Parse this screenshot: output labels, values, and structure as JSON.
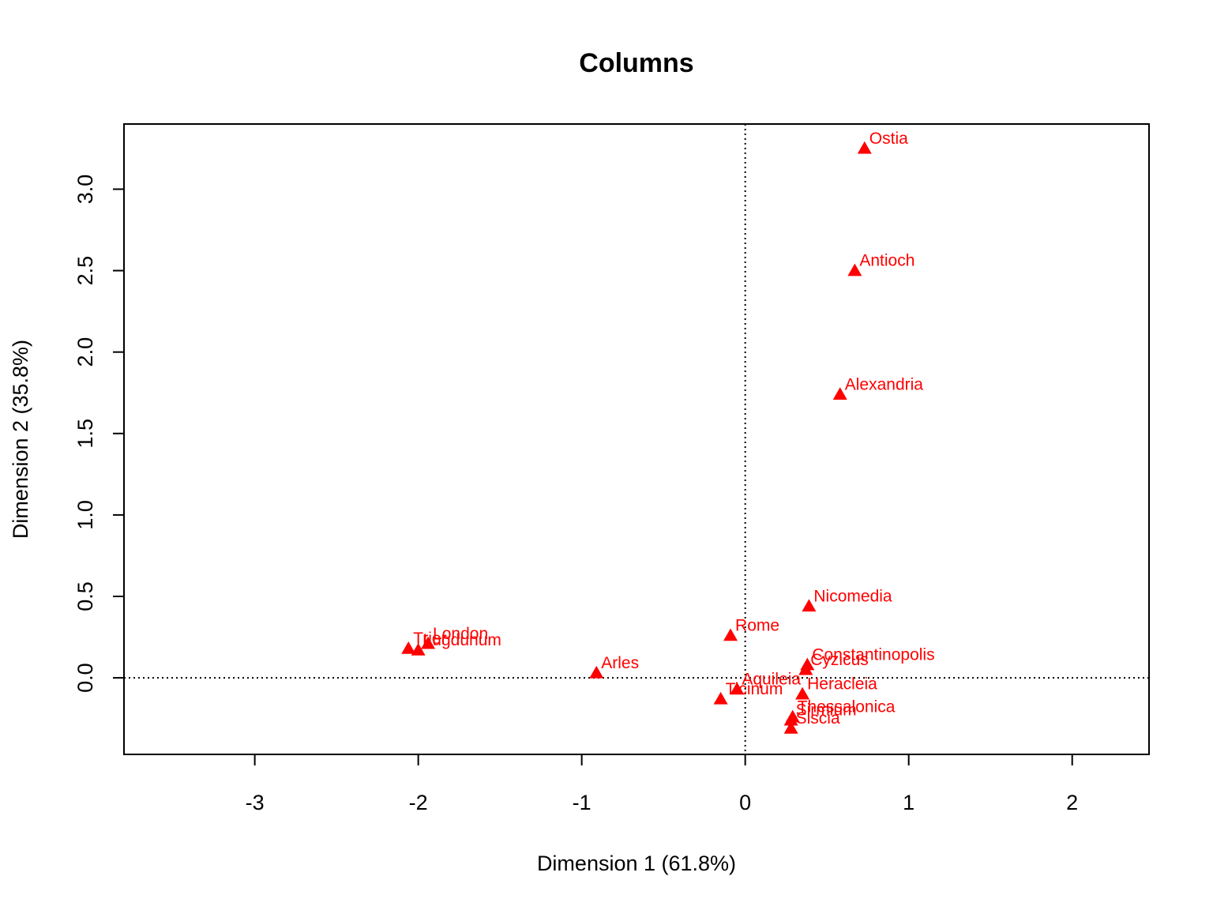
{
  "chart_data": {
    "type": "scatter",
    "title": "Columns",
    "xlabel": "Dimension 1 (61.8%)",
    "ylabel": "Dimension 2 (35.8%)",
    "xlim": [
      -3.8,
      2.47
    ],
    "ylim": [
      -0.47,
      3.4
    ],
    "x_ticks": [
      -3,
      -2,
      -1,
      0,
      1,
      2
    ],
    "y_ticks": [
      0.0,
      0.5,
      1.0,
      1.5,
      2.0,
      2.5,
      3.0
    ],
    "x_tick_labels": [
      "-3",
      "-2",
      "-1",
      "0",
      "1",
      "2"
    ],
    "y_tick_labels": [
      "0.0",
      "0.5",
      "1.0",
      "1.5",
      "2.0",
      "2.5",
      "3.0"
    ],
    "reference_lines": {
      "x": 0,
      "y": 0,
      "style": "dotted"
    },
    "grid": false,
    "marker": "triangle",
    "color": "#ff0000",
    "points": [
      {
        "label": "Ostia",
        "x": 0.73,
        "y": 3.25
      },
      {
        "label": "Antioch",
        "x": 0.67,
        "y": 2.5
      },
      {
        "label": "Alexandria",
        "x": 0.58,
        "y": 1.74
      },
      {
        "label": "Nicomedia",
        "x": 0.39,
        "y": 0.44
      },
      {
        "label": "Rome",
        "x": -0.09,
        "y": 0.26
      },
      {
        "label": "Trier",
        "x": -2.06,
        "y": 0.18
      },
      {
        "label": "Lugdunum",
        "x": -2.0,
        "y": 0.17
      },
      {
        "label": "London",
        "x": -1.94,
        "y": 0.21
      },
      {
        "label": "Arles",
        "x": -0.91,
        "y": 0.03
      },
      {
        "label": "Constantinopolis",
        "x": 0.38,
        "y": 0.08
      },
      {
        "label": "Cyzicus",
        "x": 0.37,
        "y": 0.05
      },
      {
        "label": "Heracleia",
        "x": 0.35,
        "y": -0.1
      },
      {
        "label": "Aquileia",
        "x": -0.05,
        "y": -0.07
      },
      {
        "label": "Ticinum",
        "x": -0.15,
        "y": -0.13
      },
      {
        "label": "Thessalonica",
        "x": 0.29,
        "y": -0.24
      },
      {
        "label": "Sirmium",
        "x": 0.28,
        "y": -0.26
      },
      {
        "label": "Siscia",
        "x": 0.28,
        "y": -0.31
      }
    ]
  }
}
